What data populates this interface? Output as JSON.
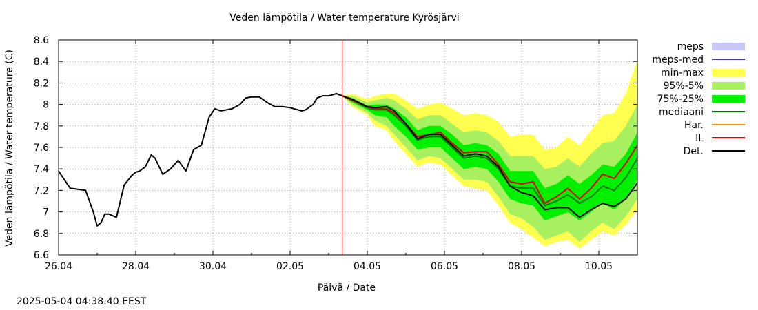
{
  "chart_data": {
    "type": "line",
    "title": "Veden lämpötila / Water temperature Kyrösjärvi",
    "xlabel": "Päivä / Date",
    "ylabel": "Veden lämpötila / Water temperature (C)",
    "x_ticks": [
      "26.04",
      "28.04",
      "30.04",
      "02.05",
      "04.05",
      "06.05",
      "08.05",
      "10.05"
    ],
    "y_ticks": [
      "6.6",
      "6.8",
      "7",
      "7.2",
      "7.4",
      "7.6",
      "7.8",
      "8",
      "8.2",
      "8.4",
      "8.6"
    ],
    "ylim": [
      6.6,
      8.6
    ],
    "x_unit": "days since 26.04",
    "xlim": [
      0,
      15
    ],
    "forecast_start": 4.1,
    "grid": true,
    "legend_position": "right",
    "legend": [
      {
        "label": "meps",
        "color": "#c8c8f8",
        "style": "band"
      },
      {
        "label": "meps-med",
        "color": "#3a3ac8",
        "style": "line"
      },
      {
        "label": "min-max",
        "color": "#ffff50",
        "style": "band"
      },
      {
        "label": "95%-5%",
        "color": "#a8f060",
        "style": "band"
      },
      {
        "label": "75%-25%",
        "color": "#00f000",
        "style": "band"
      },
      {
        "label": "mediaani",
        "color": "#007800",
        "style": "line"
      },
      {
        "label": "Har.",
        "color": "#ff8c00",
        "style": "line"
      },
      {
        "label": "IL",
        "color": "#e00000",
        "style": "line"
      },
      {
        "label": "Det.",
        "color": "#000000",
        "style": "line"
      }
    ],
    "observed": {
      "x": [
        0,
        0.15,
        0.3,
        0.5,
        0.7,
        0.9,
        1.0,
        1.1,
        1.2,
        1.3,
        1.5,
        1.7,
        1.9,
        2.0,
        2.1,
        2.25,
        2.4,
        2.5,
        2.7,
        2.9,
        3.1,
        3.3,
        3.5,
        3.7,
        3.9,
        4.05
      ],
      "y": [
        7.38,
        7.3,
        7.22,
        7.21,
        7.2,
        7.0,
        6.87,
        6.9,
        6.98,
        6.98,
        6.95,
        7.25,
        7.34,
        7.37,
        7.38,
        7.42,
        7.53,
        7.5,
        7.35,
        7.4,
        7.48,
        7.38,
        7.58,
        7.62,
        7.88,
        7.96
      ]
    },
    "observed2": {
      "x": [
        4.05,
        4.2,
        4.5,
        4.7,
        4.85,
        5.0,
        5.2,
        5.4,
        5.6,
        5.8,
        6.0,
        6.3,
        6.4,
        6.6,
        6.7,
        6.85
      ],
      "y": [
        7.96,
        7.94,
        7.96,
        8.0,
        8.06,
        8.07,
        8.07,
        8.02,
        7.98,
        7.98,
        7.97,
        7.94,
        7.95,
        8.0,
        8.06,
        8.08
      ]
    },
    "forecast": {
      "x": [
        7.35,
        7.6,
        8.0,
        8.2,
        8.5,
        8.7,
        9.0,
        9.3,
        9.6,
        9.9,
        10.2,
        10.5,
        10.8,
        11.1,
        11.4,
        11.7,
        12.0,
        12.3,
        12.6,
        12.9,
        13.2,
        13.5,
        13.8,
        14.1,
        14.4,
        14.7,
        15.0
      ],
      "det": [
        8.08,
        8.05,
        7.98,
        7.97,
        7.98,
        7.94,
        7.82,
        7.68,
        7.72,
        7.72,
        7.62,
        7.52,
        7.54,
        7.52,
        7.42,
        7.24,
        7.18,
        7.15,
        7.02,
        7.04,
        7.04,
        6.95,
        7.02,
        7.08,
        7.05,
        7.12,
        7.27
      ],
      "il": [
        8.08,
        8.04,
        7.98,
        7.96,
        7.96,
        7.92,
        7.82,
        7.7,
        7.72,
        7.74,
        7.64,
        7.55,
        7.56,
        7.56,
        7.44,
        7.28,
        7.26,
        7.28,
        7.08,
        7.14,
        7.22,
        7.12,
        7.22,
        7.35,
        7.31,
        7.45,
        7.62
      ],
      "median": [
        8.08,
        8.04,
        7.97,
        7.95,
        7.95,
        7.9,
        7.8,
        7.67,
        7.7,
        7.7,
        7.6,
        7.5,
        7.52,
        7.5,
        7.4,
        7.24,
        7.22,
        7.22,
        7.06,
        7.1,
        7.16,
        7.08,
        7.14,
        7.24,
        7.2,
        7.32,
        7.5
      ],
      "p25": [
        8.08,
        8.02,
        7.95,
        7.9,
        7.88,
        7.8,
        7.7,
        7.58,
        7.6,
        7.6,
        7.5,
        7.4,
        7.42,
        7.4,
        7.28,
        7.12,
        7.08,
        7.06,
        6.92,
        6.96,
        7.0,
        6.92,
        7.0,
        7.08,
        7.02,
        7.12,
        7.3
      ],
      "p75": [
        8.08,
        8.06,
        7.99,
        8.0,
        8.0,
        7.96,
        7.88,
        7.76,
        7.8,
        7.8,
        7.72,
        7.62,
        7.64,
        7.62,
        7.54,
        7.38,
        7.38,
        7.38,
        7.22,
        7.26,
        7.34,
        7.26,
        7.34,
        7.44,
        7.42,
        7.54,
        7.74
      ],
      "p5": [
        8.08,
        8.0,
        7.92,
        7.85,
        7.8,
        7.72,
        7.6,
        7.48,
        7.52,
        7.5,
        7.4,
        7.3,
        7.3,
        7.28,
        7.14,
        6.98,
        6.94,
        6.86,
        6.74,
        6.78,
        6.82,
        6.72,
        6.82,
        6.9,
        6.84,
        6.96,
        7.12
      ],
      "p95": [
        8.08,
        8.08,
        8.02,
        8.04,
        8.06,
        8.04,
        7.96,
        7.86,
        7.9,
        7.9,
        7.82,
        7.74,
        7.76,
        7.74,
        7.66,
        7.52,
        7.52,
        7.52,
        7.4,
        7.42,
        7.5,
        7.42,
        7.54,
        7.64,
        7.66,
        7.8,
        8.0
      ],
      "min": [
        8.08,
        7.98,
        7.9,
        7.8,
        7.76,
        7.66,
        7.54,
        7.42,
        7.46,
        7.44,
        7.34,
        7.24,
        7.22,
        7.2,
        7.06,
        6.9,
        6.84,
        6.76,
        6.68,
        6.72,
        6.74,
        6.66,
        6.74,
        6.82,
        6.78,
        6.88,
        7.02
      ],
      "max": [
        8.08,
        8.1,
        8.05,
        8.08,
        8.1,
        8.1,
        8.04,
        7.96,
        8.0,
        8.02,
        7.96,
        7.9,
        7.92,
        7.9,
        7.84,
        7.7,
        7.72,
        7.72,
        7.58,
        7.6,
        7.7,
        7.62,
        7.76,
        7.9,
        7.92,
        8.1,
        8.42
      ]
    }
  },
  "timestamp": "2025-05-04 04:38:40 EEST"
}
